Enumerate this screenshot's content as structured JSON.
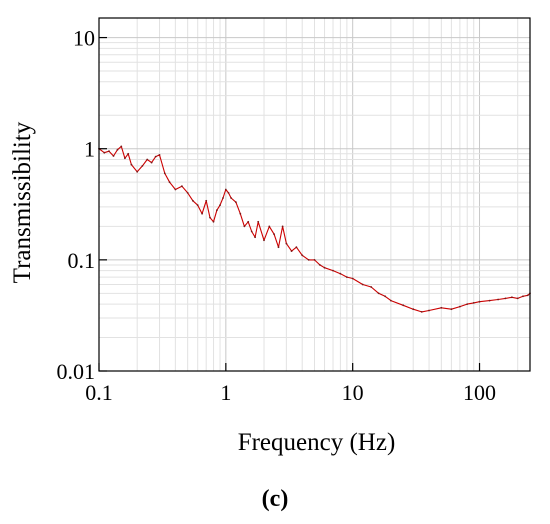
{
  "chart_data": {
    "type": "line",
    "xlabel": "Frequency (Hz)",
    "ylabel": "Transmissibility",
    "xscale": "log",
    "yscale": "log",
    "xlim": [
      0.1,
      250
    ],
    "ylim": [
      0.01,
      15
    ],
    "x_ticks": [
      0.1,
      1,
      10,
      100
    ],
    "x_tick_labels": [
      "0.1",
      "1",
      "10",
      "100"
    ],
    "y_ticks": [
      0.01,
      0.1,
      1,
      10
    ],
    "y_tick_labels": [
      "0.01",
      "0.1",
      "1",
      "10"
    ],
    "grid": true,
    "legend": "none",
    "series": [
      {
        "color": "#cc0000",
        "x": [
          0.1,
          0.11,
          0.12,
          0.13,
          0.14,
          0.15,
          0.16,
          0.17,
          0.18,
          0.2,
          0.22,
          0.24,
          0.26,
          0.28,
          0.3,
          0.33,
          0.36,
          0.4,
          0.45,
          0.5,
          0.55,
          0.6,
          0.65,
          0.7,
          0.75,
          0.8,
          0.85,
          0.9,
          0.95,
          1.0,
          1.05,
          1.1,
          1.2,
          1.3,
          1.4,
          1.5,
          1.6,
          1.7,
          1.8,
          2.0,
          2.2,
          2.4,
          2.6,
          2.8,
          3.0,
          3.3,
          3.6,
          4.0,
          4.5,
          5.0,
          5.5,
          6.0,
          7.0,
          8.0,
          9.0,
          10,
          12,
          14,
          16,
          18,
          20,
          25,
          30,
          35,
          40,
          50,
          60,
          70,
          80,
          90,
          100,
          120,
          140,
          160,
          180,
          200,
          220,
          240,
          250
        ],
        "y": [
          1.0,
          0.92,
          0.95,
          0.86,
          0.98,
          1.05,
          0.82,
          0.9,
          0.72,
          0.62,
          0.7,
          0.8,
          0.75,
          0.85,
          0.88,
          0.6,
          0.5,
          0.43,
          0.46,
          0.4,
          0.34,
          0.31,
          0.26,
          0.34,
          0.24,
          0.22,
          0.28,
          0.31,
          0.36,
          0.43,
          0.4,
          0.36,
          0.33,
          0.26,
          0.2,
          0.22,
          0.18,
          0.16,
          0.22,
          0.15,
          0.2,
          0.17,
          0.13,
          0.2,
          0.14,
          0.12,
          0.13,
          0.11,
          0.1,
          0.1,
          0.09,
          0.085,
          0.08,
          0.075,
          0.07,
          0.068,
          0.06,
          0.057,
          0.05,
          0.047,
          0.043,
          0.039,
          0.036,
          0.034,
          0.035,
          0.037,
          0.036,
          0.038,
          0.04,
          0.041,
          0.042,
          0.043,
          0.044,
          0.045,
          0.046,
          0.045,
          0.047,
          0.048,
          0.05
        ]
      }
    ]
  },
  "caption": "(c)"
}
